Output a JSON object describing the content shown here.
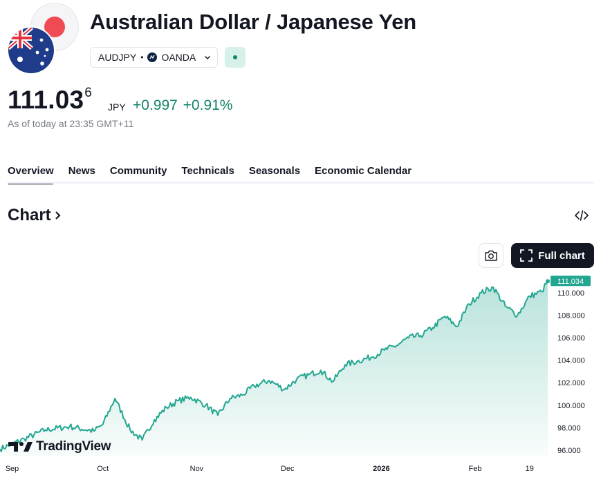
{
  "header": {
    "title": "Australian Dollar / Japanese Yen",
    "symbol": "AUDJPY",
    "separator": "•",
    "broker": "OANDA"
  },
  "quote": {
    "price_main": "111.03",
    "price_sup": "6",
    "currency": "JPY",
    "change": "+0.997",
    "change_pct": "+0.91%",
    "as_of": "As of today at 23:35 GMT+11"
  },
  "tabs": [
    "Overview",
    "News",
    "Community",
    "Technicals",
    "Seasonals",
    "Economic Calendar"
  ],
  "chart_section": {
    "heading": "Chart",
    "full_chart_label": "Full chart",
    "brand": "TradingView"
  },
  "colors": {
    "accent_green": "#14836b",
    "line": "#22a68f",
    "text": "#131722",
    "muted": "#787b86"
  },
  "chart_data": {
    "type": "area",
    "x": [
      "2025-08-28",
      "2025-09-05",
      "2025-09-12",
      "2025-09-20",
      "2025-09-28",
      "2025-10-01",
      "2025-10-05",
      "2025-10-10",
      "2025-10-14",
      "2025-10-18",
      "2025-10-22",
      "2025-10-26",
      "2025-10-30",
      "2025-11-04",
      "2025-11-08",
      "2025-11-12",
      "2025-11-16",
      "2025-11-20",
      "2025-11-25",
      "2025-11-30",
      "2025-12-04",
      "2025-12-08",
      "2025-12-12",
      "2025-12-16",
      "2025-12-20",
      "2025-12-24",
      "2025-12-29",
      "2026-01-02",
      "2026-01-06",
      "2026-01-10",
      "2026-01-14",
      "2026-01-18",
      "2026-01-22",
      "2026-01-26",
      "2026-01-30",
      "2026-02-03",
      "2026-02-07",
      "2026-02-11",
      "2026-02-15",
      "2026-02-19",
      "2026-02-23",
      "2026-02-25"
    ],
    "values": [
      96.1,
      97.0,
      97.8,
      98.1,
      97.7,
      98.3,
      100.6,
      97.8,
      96.9,
      98.7,
      99.8,
      100.4,
      100.7,
      100.0,
      99.1,
      100.6,
      100.9,
      101.7,
      102.2,
      101.4,
      102.3,
      102.7,
      103.1,
      102.1,
      103.6,
      103.9,
      104.3,
      104.9,
      105.3,
      106.0,
      106.2,
      106.9,
      107.9,
      107.0,
      109.0,
      110.0,
      110.5,
      108.8,
      108.0,
      109.7,
      110.1,
      111.034
    ],
    "last_value_label": "111.034",
    "y_ticks": [
      "110.000",
      "108.000",
      "106.000",
      "104.000",
      "102.000",
      "100.000",
      "98.000",
      "96.000"
    ],
    "x_ticks": [
      "Sep",
      "Oct",
      "Nov",
      "Dec",
      "2026",
      "Feb",
      "19"
    ],
    "ylim": [
      95.5,
      111.6
    ],
    "grid": false
  }
}
